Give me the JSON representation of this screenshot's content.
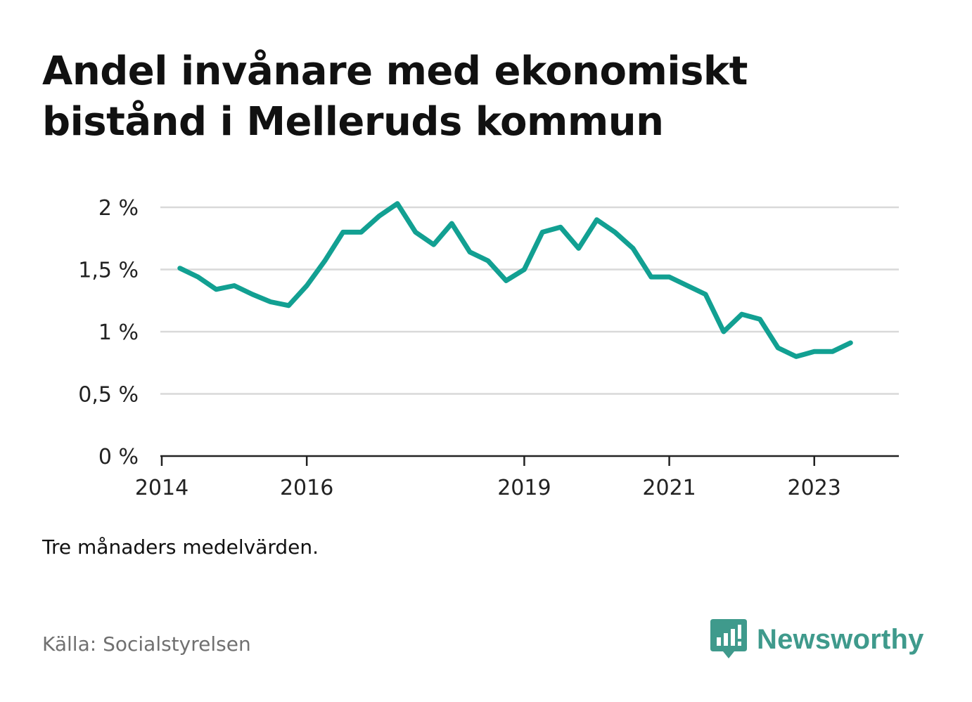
{
  "title": "Andel invånare med ekonomiskt bistånd i Melleruds kommun",
  "note": "Tre månaders medelvärden.",
  "source": "Källa: Socialstyrelsen",
  "brand": {
    "name": "Newsworthy",
    "icon": "newsworthy-logo-icon",
    "color": "#3f9a8c"
  },
  "colors": {
    "line": "#12a092",
    "grid": "#d9d9d9",
    "axis": "#222222"
  },
  "chart_data": {
    "type": "line",
    "title": "Andel invånare med ekonomiskt bistånd i Melleruds kommun",
    "xlabel": "",
    "ylabel": "",
    "xlim": [
      "2014-01",
      "2024-03"
    ],
    "ylim": [
      0,
      2
    ],
    "y_ticks": [
      0,
      0.5,
      1,
      1.5,
      2
    ],
    "y_tick_labels": [
      "0 %",
      "0,5 %",
      "1 %",
      "1,5 %",
      "2 %"
    ],
    "x_ticks": [
      "2014-01",
      "2016-01",
      "2019-01",
      "2021-01",
      "2023-01"
    ],
    "x_tick_labels": [
      "2014",
      "2016",
      "2019",
      "2021",
      "2023"
    ],
    "grid": true,
    "series": [
      {
        "points": [
          {
            "x": "2014-04",
            "y": 1.51
          },
          {
            "x": "2014-07",
            "y": 1.44
          },
          {
            "x": "2014-10",
            "y": 1.34
          },
          {
            "x": "2015-01",
            "y": 1.37
          },
          {
            "x": "2015-04",
            "y": 1.3
          },
          {
            "x": "2015-07",
            "y": 1.24
          },
          {
            "x": "2015-10",
            "y": 1.21
          },
          {
            "x": "2016-01",
            "y": 1.37
          },
          {
            "x": "2016-04",
            "y": 1.57
          },
          {
            "x": "2016-07",
            "y": 1.8
          },
          {
            "x": "2016-10",
            "y": 1.8
          },
          {
            "x": "2017-01",
            "y": 1.93
          },
          {
            "x": "2017-04",
            "y": 2.03
          },
          {
            "x": "2017-07",
            "y": 1.8
          },
          {
            "x": "2017-10",
            "y": 1.7
          },
          {
            "x": "2018-01",
            "y": 1.87
          },
          {
            "x": "2018-04",
            "y": 1.64
          },
          {
            "x": "2018-07",
            "y": 1.57
          },
          {
            "x": "2018-10",
            "y": 1.41
          },
          {
            "x": "2019-01",
            "y": 1.5
          },
          {
            "x": "2019-04",
            "y": 1.8
          },
          {
            "x": "2019-07",
            "y": 1.84
          },
          {
            "x": "2019-10",
            "y": 1.67
          },
          {
            "x": "2020-01",
            "y": 1.9
          },
          {
            "x": "2020-04",
            "y": 1.8
          },
          {
            "x": "2020-07",
            "y": 1.67
          },
          {
            "x": "2020-10",
            "y": 1.44
          },
          {
            "x": "2021-01",
            "y": 1.44
          },
          {
            "x": "2021-04",
            "y": 1.37
          },
          {
            "x": "2021-07",
            "y": 1.3
          },
          {
            "x": "2021-10",
            "y": 1.0
          },
          {
            "x": "2022-01",
            "y": 1.14
          },
          {
            "x": "2022-04",
            "y": 1.1
          },
          {
            "x": "2022-07",
            "y": 0.87
          },
          {
            "x": "2022-10",
            "y": 0.8
          },
          {
            "x": "2023-01",
            "y": 0.84
          },
          {
            "x": "2023-04",
            "y": 0.84
          },
          {
            "x": "2023-07",
            "y": 0.91
          }
        ]
      }
    ]
  }
}
